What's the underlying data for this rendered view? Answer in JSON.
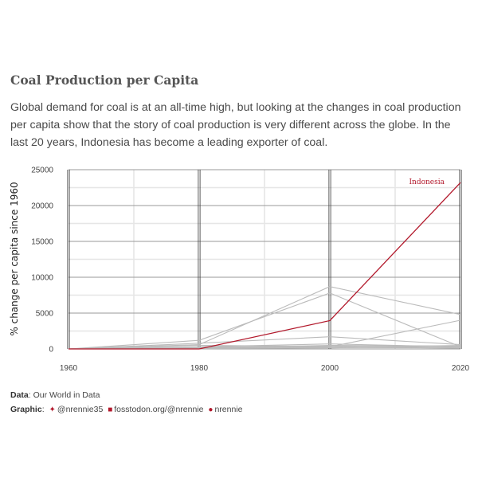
{
  "header": {
    "title": "Coal Production per Capita",
    "subtitle": "Global demand for coal is at an all-time high, but looking at the changes in coal production per capita show that the story of coal production is very different across the globe. In the last 20 years, Indonesia has become a leading exporter of coal."
  },
  "caption": {
    "data_label": "Data",
    "data_value": "Our World in Data",
    "graphic_label": "Graphic",
    "twitter": "@nrennie35",
    "mastodon": "fosstodon.org/@nrennie",
    "github": "nrennie"
  },
  "colors": {
    "highlight": "#b2182b",
    "other": "#bbbbbb"
  },
  "chart_data": {
    "type": "line",
    "title": "",
    "xlabel": "",
    "ylabel": "% change per capita since 1960",
    "xlim": [
      1960,
      2020
    ],
    "ylim": [
      0,
      25000
    ],
    "x": [
      1960,
      1980,
      2000,
      2020
    ],
    "x_ticks": [
      "1960",
      "1980",
      "2000",
      "2020"
    ],
    "y_ticks": [
      "0",
      "5000",
      "10000",
      "15000",
      "20000",
      "25000"
    ],
    "grid": true,
    "highlight_label": "Indonesia",
    "series": [
      {
        "name": "Indonesia",
        "values": [
          0,
          0,
          3950,
          23200
        ],
        "highlight": true
      },
      {
        "values": [
          0,
          600,
          8700,
          4800
        ]
      },
      {
        "values": [
          0,
          1200,
          7800,
          300
        ]
      },
      {
        "values": [
          0,
          150,
          300,
          4000
        ]
      },
      {
        "values": [
          0,
          800,
          1700,
          600
        ]
      },
      {
        "values": [
          0,
          300,
          700,
          300
        ]
      },
      {
        "values": [
          0,
          100,
          500,
          400
        ]
      },
      {
        "values": [
          0,
          250,
          400,
          200
        ]
      },
      {
        "values": [
          0,
          60,
          200,
          150
        ]
      },
      {
        "values": [
          0,
          500,
          350,
          100
        ]
      },
      {
        "values": [
          0,
          40,
          150,
          500
        ]
      }
    ]
  }
}
